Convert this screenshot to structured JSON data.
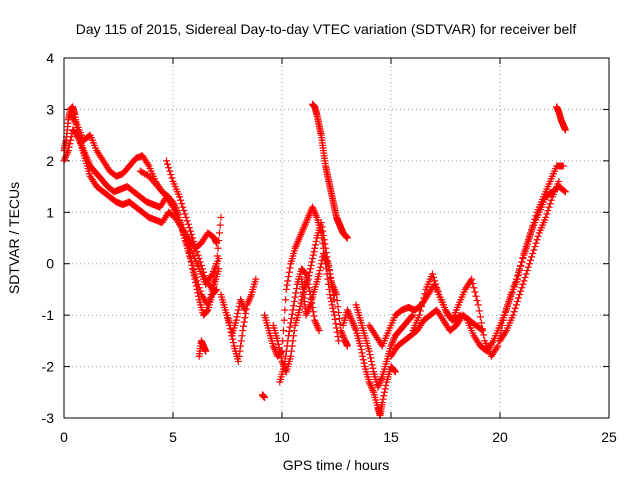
{
  "chart_data": {
    "type": "scatter",
    "title": "Day 115 of 2015, Sidereal Day-to-day VTEC variation (SDTVAR) for receiver belf",
    "xlabel": "GPS time / hours",
    "ylabel": "SDTVAR / TECUs",
    "xlim": [
      0,
      25
    ],
    "ylim": [
      -3,
      4
    ],
    "xticks": [
      "0",
      "5",
      "10",
      "15",
      "20",
      "25"
    ],
    "yticks": [
      "-3",
      "-2",
      "-1",
      "0",
      "1",
      "2",
      "3",
      "4"
    ],
    "grid": true,
    "marker": "plus",
    "color": "#ff0000",
    "series": [
      {
        "x": [
          0.0,
          0.1,
          0.2,
          0.3,
          0.4,
          0.5,
          0.6,
          0.8,
          1.0,
          1.2,
          1.4,
          1.6,
          1.8,
          2.0,
          2.3,
          2.6,
          2.9,
          3.2,
          3.5,
          3.8,
          4.1,
          4.4,
          4.7,
          5.0,
          5.2,
          5.4,
          5.6,
          5.8,
          6.0,
          6.2,
          6.4,
          6.6,
          6.8,
          7.0
        ],
        "y": [
          2.2,
          2.4,
          2.8,
          3.0,
          3.05,
          2.9,
          2.6,
          2.3,
          2.1,
          1.9,
          1.8,
          1.7,
          1.6,
          1.5,
          1.4,
          1.45,
          1.5,
          1.4,
          1.3,
          1.2,
          1.15,
          1.1,
          1.3,
          1.2,
          1.0,
          0.7,
          0.4,
          0.1,
          -0.3,
          -0.7,
          -1.0,
          -0.9,
          -0.6,
          -0.5
        ]
      },
      {
        "x": [
          0.0,
          0.2,
          0.4,
          0.6,
          0.8,
          1.0,
          1.2,
          1.5,
          1.8,
          2.1,
          2.4,
          2.7,
          3.0,
          3.3,
          3.6,
          3.9,
          4.2,
          4.5,
          4.8,
          5.1,
          5.4,
          5.7,
          6.0,
          6.3,
          6.6,
          6.9,
          7.0
        ],
        "y": [
          2.0,
          2.2,
          2.6,
          2.5,
          2.3,
          2.0,
          1.7,
          1.5,
          1.4,
          1.3,
          1.2,
          1.15,
          1.2,
          1.1,
          1.0,
          0.9,
          0.85,
          0.8,
          1.0,
          0.9,
          0.7,
          0.5,
          0.3,
          0.4,
          0.6,
          0.5,
          0.4
        ]
      },
      {
        "x": [
          0.3,
          0.6,
          0.9,
          1.2,
          1.5,
          1.8,
          2.1,
          2.4,
          2.7,
          3.0,
          3.3,
          3.6,
          3.9,
          4.2,
          4.5,
          4.8,
          5.1,
          5.4,
          5.7,
          6.0,
          6.3,
          6.6,
          6.9,
          7.1
        ],
        "y": [
          2.9,
          2.7,
          2.4,
          2.5,
          2.2,
          2.0,
          1.8,
          1.7,
          1.75,
          1.9,
          2.05,
          2.1,
          1.9,
          1.6,
          1.4,
          1.3,
          1.1,
          0.7,
          0.3,
          -0.2,
          -0.6,
          -0.8,
          -0.4,
          -0.1
        ]
      },
      {
        "x": [
          3.5,
          3.9,
          4.3,
          4.7,
          5.0,
          5.3,
          5.6,
          5.9,
          6.2,
          6.5,
          6.8,
          7.1
        ],
        "y": [
          1.8,
          1.7,
          1.5,
          1.3,
          1.1,
          0.8,
          0.5,
          0.2,
          -0.1,
          -0.4,
          -0.2,
          0.1
        ]
      },
      {
        "x": [
          4.7,
          5.0,
          5.3,
          5.6,
          5.9,
          6.2,
          6.5,
          6.8,
          7.0,
          7.2
        ],
        "y": [
          2.0,
          1.6,
          1.3,
          0.9,
          0.5,
          0.1,
          -0.3,
          -0.5,
          0.0,
          0.9
        ]
      },
      {
        "x": [
          6.2,
          6.3,
          6.4,
          6.5
        ],
        "y": [
          -1.8,
          -1.5,
          -1.6,
          -1.7
        ]
      },
      {
        "x": [
          7.2,
          7.4,
          7.6,
          7.8,
          8.0,
          8.2,
          8.4,
          8.6,
          8.8
        ],
        "y": [
          -0.6,
          -0.9,
          -1.2,
          -1.6,
          -1.9,
          -1.3,
          -0.8,
          -0.6,
          -0.3
        ]
      },
      {
        "x": [
          7.5,
          7.7,
          7.9,
          8.1,
          8.3
        ],
        "y": [
          -1.0,
          -1.4,
          -1.1,
          -0.7,
          -0.9
        ]
      },
      {
        "x": [
          9.1,
          9.2
        ],
        "y": [
          -2.55,
          -2.6
        ]
      },
      {
        "x": [
          9.2,
          9.4,
          9.6,
          9.8,
          10.0,
          10.2,
          10.4,
          10.6,
          10.8,
          11.0,
          11.2,
          11.4,
          11.6,
          11.8,
          12.0,
          12.2,
          12.4,
          12.6
        ],
        "y": [
          -1.0,
          -1.3,
          -1.6,
          -1.8,
          -1.7,
          -0.5,
          0.0,
          0.3,
          0.5,
          0.7,
          0.9,
          1.1,
          0.9,
          0.6,
          0.0,
          -0.6,
          -1.0,
          -1.5
        ]
      },
      {
        "x": [
          9.6,
          9.8,
          10.0,
          10.2,
          10.4,
          10.6,
          10.8,
          11.0,
          11.2,
          11.4,
          11.6,
          11.8,
          12.0,
          12.2,
          12.4
        ],
        "y": [
          -1.2,
          -1.5,
          -1.9,
          -2.1,
          -1.8,
          -1.2,
          -0.9,
          -0.5,
          -0.3,
          0.1,
          0.5,
          0.8,
          0.3,
          -0.2,
          -0.7
        ]
      },
      {
        "x": [
          9.9,
          10.1,
          10.3,
          10.5,
          10.7,
          10.9,
          11.1,
          11.3,
          11.5,
          11.7
        ],
        "y": [
          -2.3,
          -2.0,
          -1.4,
          -0.9,
          -0.4,
          -0.1,
          -0.2,
          -0.6,
          -1.1,
          -1.3
        ]
      },
      {
        "x": [
          10.9,
          11.0,
          11.1,
          11.3,
          11.5,
          11.7,
          11.9,
          12.1,
          12.3,
          12.5,
          12.7,
          12.9,
          13.0
        ],
        "y": [
          -0.3,
          -0.6,
          -1.0,
          -0.8,
          -0.5,
          -0.2,
          0.2,
          0.0,
          -0.4,
          -0.6,
          -1.3,
          -1.5,
          -1.6
        ]
      },
      {
        "x": [
          11.4,
          11.5,
          11.6,
          11.7,
          11.8,
          11.9,
          12.0,
          12.1,
          12.2,
          12.3,
          12.4,
          12.5,
          12.6,
          12.7,
          12.8,
          12.9,
          13.0
        ],
        "y": [
          3.1,
          3.05,
          2.9,
          2.7,
          2.5,
          2.2,
          1.9,
          1.7,
          1.5,
          1.3,
          1.1,
          0.9,
          0.8,
          0.7,
          0.6,
          0.55,
          0.5
        ]
      },
      {
        "x": [
          12.8,
          13.0,
          13.2,
          13.4,
          13.6,
          13.8,
          14.0,
          14.2,
          14.4,
          14.5,
          14.6,
          14.8,
          15.0,
          15.2
        ],
        "y": [
          -1.2,
          -0.9,
          -1.1,
          -1.3,
          -1.6,
          -2.0,
          -2.3,
          -2.5,
          -2.8,
          -2.95,
          -2.7,
          -2.3,
          -2.0,
          -2.1
        ]
      },
      {
        "x": [
          13.4,
          13.6,
          13.8,
          14.0,
          14.2,
          14.4,
          14.6,
          14.8,
          15.0,
          15.2,
          15.4,
          15.6,
          15.8,
          16.0
        ],
        "y": [
          -0.8,
          -1.1,
          -1.4,
          -1.7,
          -2.1,
          -2.4,
          -2.2,
          -1.9,
          -1.6,
          -1.4,
          -1.3,
          -1.2,
          -1.1,
          -1.0
        ]
      },
      {
        "x": [
          14.0,
          14.3,
          14.6,
          14.9,
          15.2,
          15.5,
          15.8,
          16.1,
          16.4,
          16.7,
          17.0,
          17.3,
          17.6,
          17.9,
          18.2
        ],
        "y": [
          -1.2,
          -1.4,
          -1.6,
          -1.3,
          -1.0,
          -0.9,
          -0.85,
          -0.9,
          -0.8,
          -0.6,
          -0.4,
          -0.7,
          -1.0,
          -1.1,
          -1.0
        ]
      },
      {
        "x": [
          15.0,
          15.3,
          15.6,
          15.9,
          16.2,
          16.5,
          16.8,
          17.1,
          17.4,
          17.7,
          18.0,
          18.3,
          18.6,
          18.9,
          19.2
        ],
        "y": [
          -1.8,
          -1.6,
          -1.5,
          -1.4,
          -1.3,
          -1.1,
          -1.0,
          -0.9,
          -1.1,
          -1.3,
          -1.2,
          -1.0,
          -1.1,
          -1.2,
          -1.3
        ]
      },
      {
        "x": [
          16.0,
          16.3,
          16.6,
          16.9,
          17.2,
          17.5,
          17.8,
          18.1,
          18.4,
          18.7,
          19.0,
          19.3,
          19.6,
          19.9,
          20.2,
          20.5,
          20.8,
          21.1,
          21.4,
          21.7,
          22.0,
          22.3,
          22.6,
          22.9
        ],
        "y": [
          -1.3,
          -1.0,
          -0.5,
          -0.2,
          -0.6,
          -0.9,
          -1.1,
          -0.8,
          -0.5,
          -0.3,
          -0.8,
          -1.5,
          -1.8,
          -1.6,
          -1.0,
          -0.6,
          -0.3,
          0.2,
          0.6,
          1.0,
          1.3,
          1.6,
          1.9,
          1.9
        ]
      },
      {
        "x": [
          18.5,
          18.8,
          19.1,
          19.4,
          19.7,
          20.0,
          20.3,
          20.6,
          20.9,
          21.2,
          21.5,
          21.8,
          22.1,
          22.4,
          22.7,
          23.0
        ],
        "y": [
          -1.1,
          -1.4,
          -1.6,
          -1.7,
          -1.5,
          -1.2,
          -0.9,
          -0.5,
          -0.1,
          0.3,
          0.7,
          1.0,
          1.3,
          1.4,
          1.5,
          1.4
        ]
      },
      {
        "x": [
          20.0,
          20.3,
          20.6,
          20.9,
          21.2,
          21.5,
          21.8,
          22.1,
          22.4,
          22.7
        ],
        "y": [
          -1.5,
          -1.3,
          -1.0,
          -0.6,
          -0.2,
          0.2,
          0.6,
          0.9,
          1.3,
          1.6
        ]
      },
      {
        "x": [
          22.6,
          22.7,
          22.8,
          22.9,
          23.0
        ],
        "y": [
          3.05,
          2.95,
          2.8,
          2.7,
          2.6
        ]
      }
    ]
  }
}
